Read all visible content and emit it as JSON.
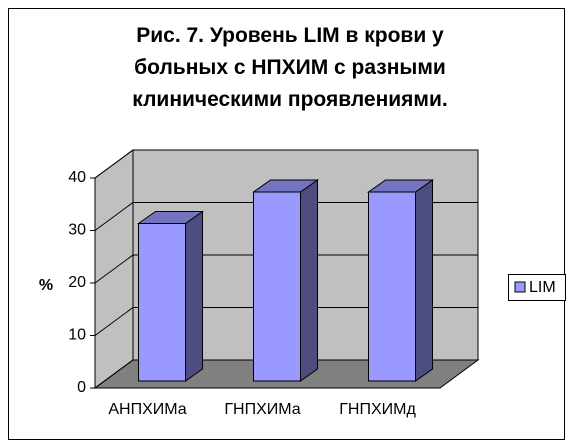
{
  "chart_data": {
    "type": "bar",
    "title": "Рис. 7. Уровень LIM в крови у больных с НПХИМ с разными клиническими проявлениями.",
    "categories": [
      "АНПХИМа",
      "ГНПХИМа",
      "ГНПХИМд"
    ],
    "series": [
      {
        "name": "LIM",
        "color": "#9999ff",
        "values": [
          30,
          36,
          36
        ]
      }
    ],
    "y_label": "%",
    "ylim": [
      0,
      40
    ],
    "yticks": [
      0,
      10,
      20,
      30,
      40
    ],
    "grid": true,
    "legend": "right"
  }
}
